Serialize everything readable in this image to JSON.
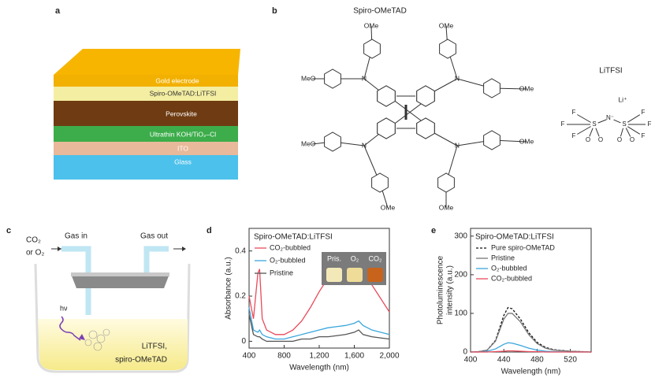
{
  "panels": {
    "a": {
      "label": "a",
      "layers": [
        "Gold electrode",
        "Spiro-OMeTAD:LiTFSI",
        "Perovskite",
        "Ultrathin KOH/TiO₂–Cl",
        "ITO",
        "Glass"
      ]
    },
    "b": {
      "label": "b",
      "title": "Spiro-OMeTAD",
      "substituents": [
        "OMe",
        "OMe",
        "MeO",
        "OMe",
        "MeO",
        "OMe",
        "OMe",
        "OMe"
      ],
      "nitrogens": [
        "N",
        "N",
        "N",
        "N"
      ],
      "salt": "LiTFSI",
      "cation": "Li⁺",
      "anion_atoms": [
        "F",
        "F",
        "F",
        "S",
        "O",
        "O",
        "N⁻",
        "S",
        "O",
        "O",
        "F",
        "F",
        "F"
      ]
    },
    "c": {
      "label": "c",
      "gas": [
        "CO₂",
        "or O₂"
      ],
      "gas_in": "Gas in",
      "gas_out": "Gas out",
      "light": "hν",
      "solution": [
        "LiTFSI,",
        "spiro-OMeTAD"
      ]
    },
    "d": {
      "label": "d"
    },
    "e": {
      "label": "e"
    }
  },
  "chart_data": [
    {
      "type": "line",
      "title": "Spiro-OMeTAD:LiTFSI",
      "xlabel": "Wavelength (nm)",
      "ylabel": [
        "Absorbance (a.u.)"
      ],
      "x": [
        400,
        450,
        500,
        520,
        550,
        600,
        700,
        800,
        900,
        1000,
        1100,
        1200,
        1300,
        1400,
        1500,
        1600,
        1650,
        1700,
        1800,
        1900,
        2000
      ],
      "series": [
        {
          "name": "CO₂-bubbled",
          "color": "#e84a5a",
          "values": [
            0.2,
            0.1,
            0.3,
            0.32,
            0.1,
            0.05,
            0.03,
            0.03,
            0.05,
            0.09,
            0.15,
            0.22,
            0.28,
            0.32,
            0.35,
            0.36,
            0.35,
            0.33,
            0.25,
            0.19,
            0.13
          ]
        },
        {
          "name": "O₂-bubbled",
          "color": "#3aa6dd",
          "values": [
            0.15,
            0.05,
            0.04,
            0.05,
            0.03,
            0.02,
            0.01,
            0.01,
            0.02,
            0.03,
            0.04,
            0.05,
            0.06,
            0.065,
            0.07,
            0.08,
            0.09,
            0.07,
            0.05,
            0.04,
            0.03
          ]
        },
        {
          "name": "Pristine",
          "color": "#555555",
          "values": [
            0.12,
            0.03,
            0.02,
            0.02,
            0.01,
            0,
            0,
            0,
            0,
            0.01,
            0.01,
            0.02,
            0.02,
            0.025,
            0.03,
            0.04,
            0.05,
            0.03,
            0.02,
            0.015,
            0.01
          ]
        }
      ],
      "xlim": [
        400,
        2000
      ],
      "xticks": [
        400,
        800,
        {
          "value": 1200,
          "label": "1,200"
        },
        {
          "value": 1600,
          "label": "1,600"
        },
        {
          "value": 2000,
          "label": "2,000"
        }
      ],
      "ylim": [
        -0.03,
        0.5
      ],
      "yticks": [
        0,
        0.2,
        0.4
      ],
      "inset_labels": [
        "Pris.",
        "O₂",
        "CO₂"
      ]
    },
    {
      "type": "line",
      "title": "Spiro-OMeTAD:LiTFSI",
      "xlabel": "Wavelength (nm)",
      "ylabel": [
        "Photoluminescence",
        "intensity (a.u.)"
      ],
      "x": [
        400,
        410,
        420,
        430,
        440,
        445,
        450,
        460,
        470,
        480,
        490,
        500,
        520,
        545
      ],
      "series": [
        {
          "name": "Pure spiro-OMeTAD",
          "color": "#111111",
          "dash": true,
          "values": [
            0,
            1,
            5,
            30,
            95,
            115,
            112,
            85,
            50,
            25,
            12,
            6,
            2,
            0
          ]
        },
        {
          "name": "Pristine",
          "color": "#777777",
          "values": [
            0,
            1,
            5,
            28,
            85,
            100,
            100,
            78,
            45,
            22,
            10,
            5,
            2,
            0
          ]
        },
        {
          "name": "O₂-bubbled",
          "color": "#3aa6dd",
          "values": [
            0,
            0,
            2,
            8,
            20,
            24,
            23,
            17,
            10,
            5,
            2,
            1,
            0,
            0
          ]
        },
        {
          "name": "CO₂-bubbled",
          "color": "#e84a5a",
          "values": [
            0,
            0,
            0,
            1,
            2,
            3,
            3,
            2,
            1,
            1,
            0,
            0,
            0,
            0
          ]
        }
      ],
      "xlim": [
        400,
        545
      ],
      "xticks": [
        400,
        440,
        480,
        520
      ],
      "ylim": [
        0,
        320
      ],
      "yticks": [
        0,
        100,
        200,
        300
      ]
    }
  ]
}
